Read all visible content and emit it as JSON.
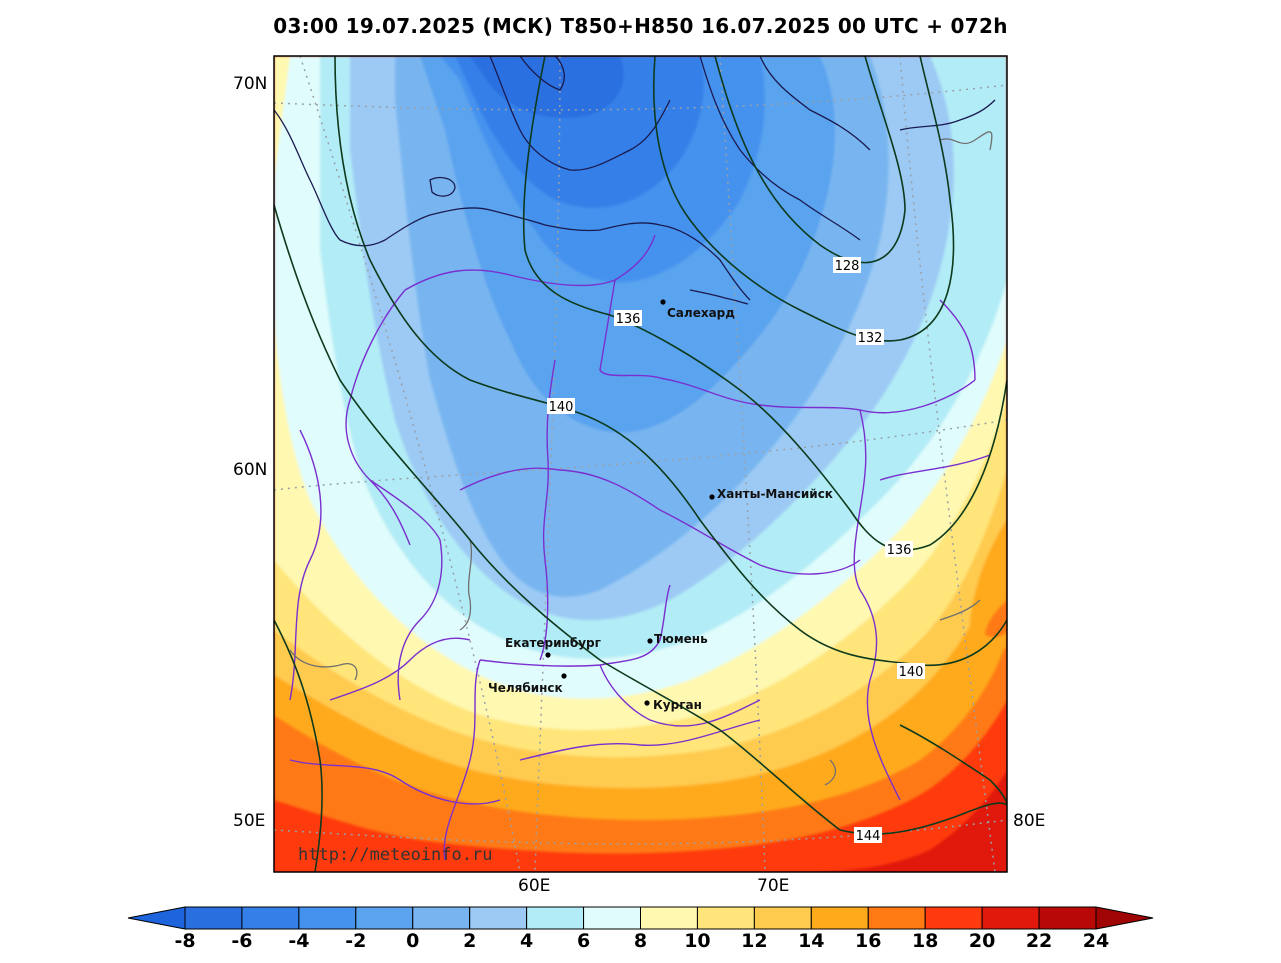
{
  "title": "03:00 19.07.2025 (МСК) T850+H850 16.07.2025 00 UTC + 072h",
  "watermark": "http://meteoinfo.ru",
  "lat_labels": [
    "70N",
    "60N",
    "50E"
  ],
  "lon_labels": [
    "60E",
    "70E",
    "80E"
  ],
  "cities": [
    {
      "name": "Салехард"
    },
    {
      "name": "Ханты-Мансийск"
    },
    {
      "name": "Екатеринбург"
    },
    {
      "name": "Тюмень"
    },
    {
      "name": "Челябинск"
    },
    {
      "name": "Курган"
    }
  ],
  "isohypse_labels": [
    "128",
    "132",
    "136",
    "140",
    "136",
    "140",
    "144"
  ],
  "colorbar": {
    "ticks": [
      "-8",
      "-6",
      "-4",
      "-2",
      "0",
      "2",
      "4",
      "6",
      "8",
      "10",
      "12",
      "14",
      "16",
      "18",
      "20",
      "22",
      "24"
    ],
    "colors": [
      "#2a6fe0",
      "#3480e8",
      "#4592ee",
      "#5aa3ef",
      "#78b5f0",
      "#9ccaf4",
      "#b2ecf6",
      "#e0fcfc",
      "#fff8b0",
      "#ffe57a",
      "#ffcb4f",
      "#ffaa1a",
      "#ff7a12",
      "#ff3a0e",
      "#e0190c",
      "#b80808"
    ],
    "low_color": "#1e64dc",
    "high_color": "#a00505"
  }
}
